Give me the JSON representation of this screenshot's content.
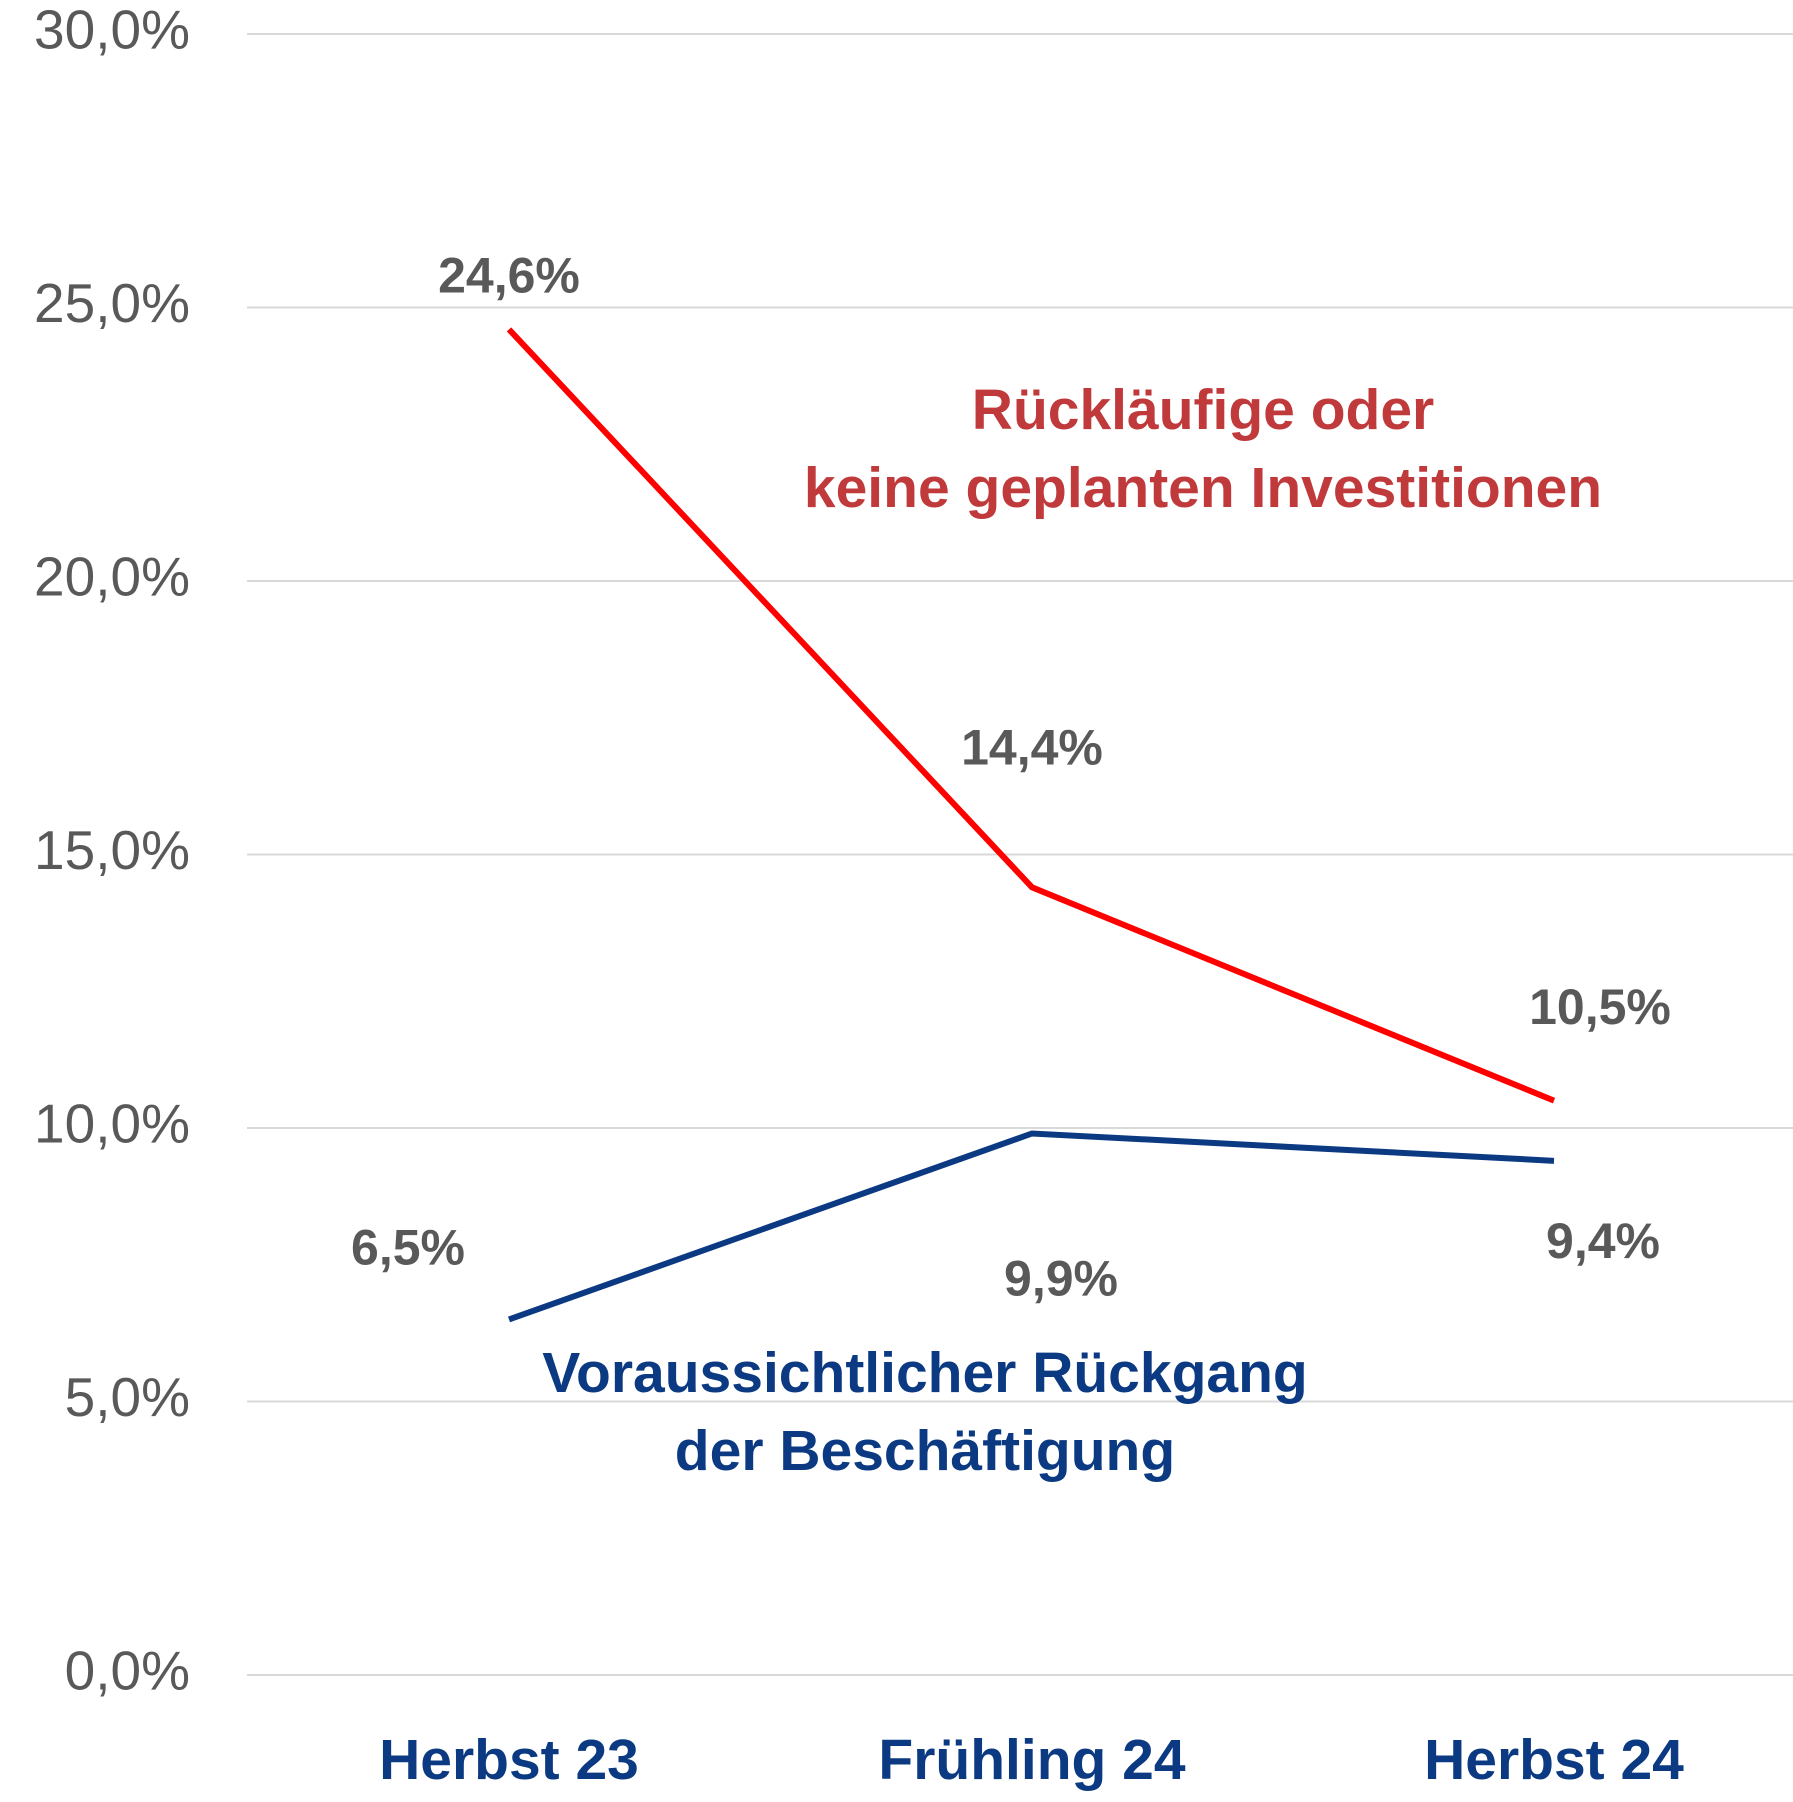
{
  "chart_data": {
    "type": "line",
    "categories": [
      "Herbst 23",
      "Frühling 24",
      "Herbst 24"
    ],
    "series": [
      {
        "name": "Rückläufige oder\nkeine geplanten Investitionen",
        "color": "#ff0000",
        "label_color": "#c0393b",
        "values": [
          24.6,
          14.4,
          10.5
        ],
        "value_labels": [
          "24,6%",
          "14,4%",
          "10,5%"
        ]
      },
      {
        "name": "Voraussichtlicher Rückgang\nder Beschäftigung",
        "color": "#0b3a82",
        "label_color": "#0b3a82",
        "values": [
          6.5,
          9.9,
          9.4
        ],
        "value_labels": [
          "6,5%",
          "9,9%",
          "9,4%"
        ]
      }
    ],
    "ylim": [
      0,
      30
    ],
    "yticks": [
      {
        "value": 0,
        "label": "0,0%"
      },
      {
        "value": 5,
        "label": "5,0%"
      },
      {
        "value": 10,
        "label": "10,0%"
      },
      {
        "value": 15,
        "label": "15,0%"
      },
      {
        "value": 20,
        "label": "20,0%"
      },
      {
        "value": 25,
        "label": "25,0%"
      },
      {
        "value": 30,
        "label": "30,0%"
      }
    ],
    "grid": true
  }
}
